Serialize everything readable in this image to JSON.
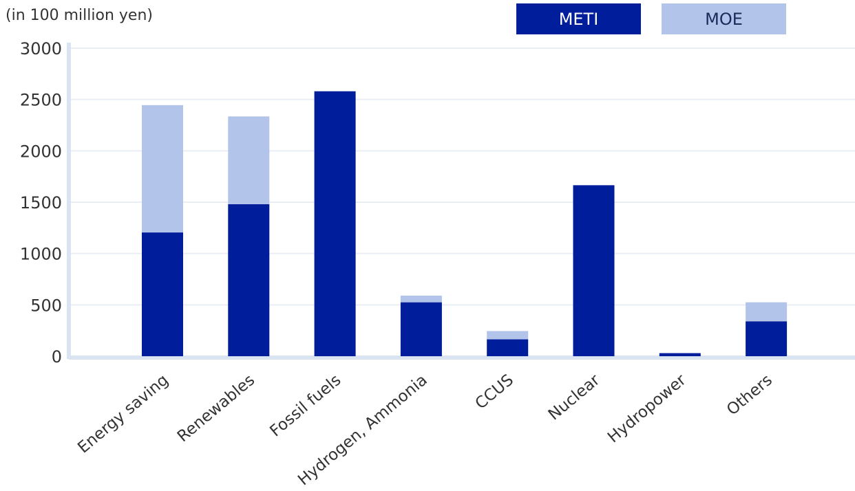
{
  "chart_data": {
    "type": "bar",
    "stacked": true,
    "unit_label": "(in 100 million yen)",
    "categories": [
      "Energy saving",
      "Renewables",
      "Fossil fuels",
      "Hydrogen, Ammonia",
      "CCUS",
      "Nuclear",
      "Hydropower",
      "Others"
    ],
    "series": [
      {
        "name": "METI",
        "color": "#001e9b",
        "values": [
          1205,
          1480,
          2580,
          525,
          165,
          1665,
          30,
          340
        ]
      },
      {
        "name": "MOE",
        "color": "#b3c4ea",
        "values": [
          1240,
          855,
          0,
          65,
          80,
          0,
          0,
          185
        ]
      }
    ],
    "yticks": [
      0,
      500,
      1000,
      1500,
      2000,
      2500,
      3000
    ],
    "ylim": [
      0,
      3000
    ],
    "grid": true,
    "legend_position": "top-right",
    "xlabel": "",
    "ylabel": ""
  }
}
